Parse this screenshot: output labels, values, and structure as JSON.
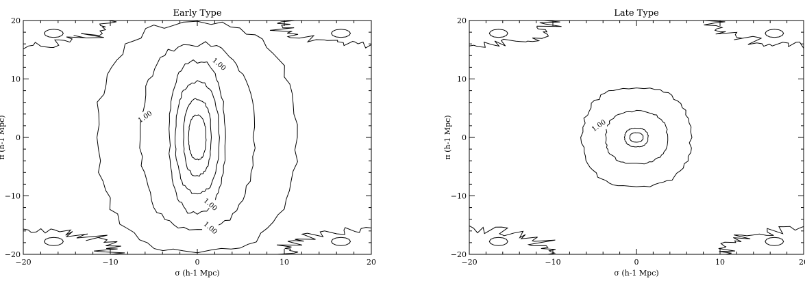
{
  "chart_data": [
    {
      "type": "contour",
      "title": "Early Type",
      "xlabel": "σ (h-1 Mpc)",
      "ylabel": "π (h-1 Mpc)",
      "xlim": [
        -20,
        20
      ],
      "ylim": [
        -20,
        20
      ],
      "xticks": [
        -20,
        -10,
        0,
        10,
        20
      ],
      "yticks": [
        -20,
        -10,
        0,
        10,
        20
      ],
      "contour_labels": [
        {
          "text": "1.00",
          "x": 2.5,
          "y": 12.5
        },
        {
          "text": "1.00",
          "x": -6.0,
          "y": 3.5
        },
        {
          "text": "1.00",
          "x": 1.5,
          "y": -11.5
        },
        {
          "text": "1.00",
          "x": 1.5,
          "y": -15.5
        }
      ],
      "contours": [
        {
          "hw": 11.5,
          "hh": 19.8
        },
        {
          "hw": 6.5,
          "hh": 16.0
        },
        {
          "hw": 3.2,
          "hh": 13.0
        },
        {
          "hw": 2.5,
          "hh": 9.5
        },
        {
          "hw": 1.6,
          "hh": 6.5
        },
        {
          "hw": 1.0,
          "hh": 3.8
        }
      ],
      "corners": true
    },
    {
      "type": "contour",
      "title": "Late Type",
      "xlabel": "σ (h-1 Mpc)",
      "ylabel": "π (h-1 Mpc)",
      "xlim": [
        -20,
        20
      ],
      "ylim": [
        -20,
        20
      ],
      "xticks": [
        -20,
        -10,
        0,
        10,
        20
      ],
      "yticks": [
        -20,
        -10,
        0,
        10,
        20
      ],
      "contour_labels": [
        {
          "text": "1.00",
          "x": -4.5,
          "y": 2.0
        }
      ],
      "contours": [
        {
          "hw": 6.5,
          "hh": 8.5
        },
        {
          "hw": 3.7,
          "hh": 4.5
        },
        {
          "hw": 1.4,
          "hh": 1.6
        },
        {
          "hw": 0.8,
          "hh": 0.8
        }
      ],
      "corners": true
    }
  ]
}
